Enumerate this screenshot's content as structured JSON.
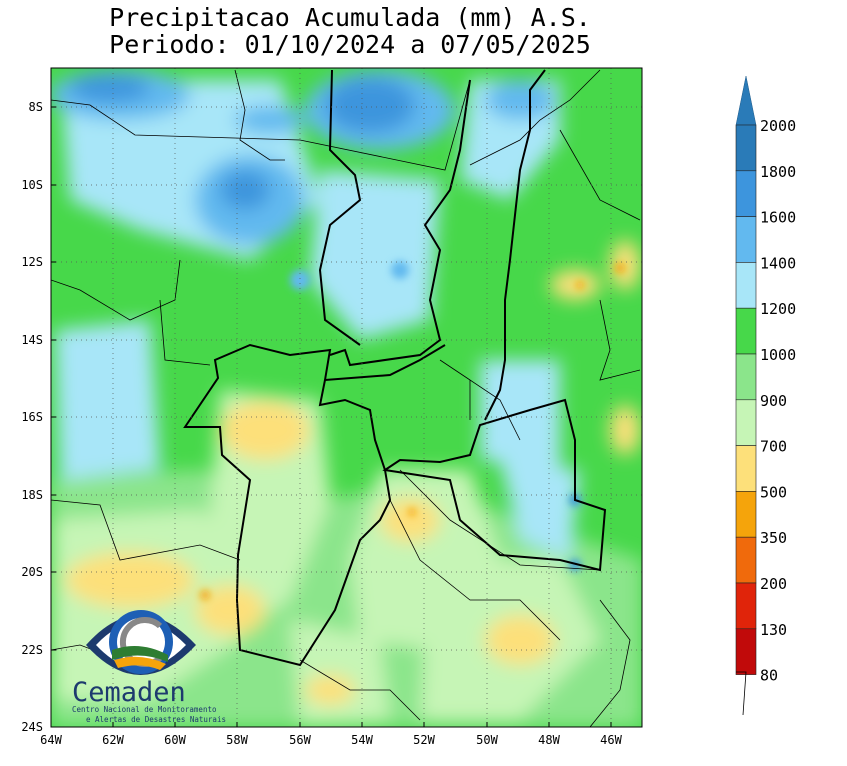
{
  "title": "Precipitacao Acumulada (mm) A.S.",
  "subtitle": "Periodo: 01/10/2024 a 07/05/2025",
  "map": {
    "lon_range": [
      -64,
      -45
    ],
    "lat_range": [
      -24,
      -7
    ],
    "lon_ticks": [
      "64W",
      "62W",
      "60W",
      "58W",
      "56W",
      "54W",
      "52W",
      "50W",
      "48W",
      "46W"
    ],
    "lat_ticks": [
      "8S",
      "10S",
      "12S",
      "14S",
      "16S",
      "18S",
      "20S",
      "22S",
      "24S"
    ],
    "dominant_class": "1000-1200 mm (green)",
    "grid": "dotted"
  },
  "legend": {
    "classes": [
      {
        "label": "2000",
        "color": "#2a7bb8"
      },
      {
        "label": "1800",
        "color": "#2a7bb8"
      },
      {
        "label": "1600",
        "color": "#3d95dd"
      },
      {
        "label": "1400",
        "color": "#62b9ef"
      },
      {
        "label": "1200",
        "color": "#a8e6f8"
      },
      {
        "label": "1000",
        "color": "#47d84a"
      },
      {
        "label": "900",
        "color": "#8be58b"
      },
      {
        "label": "700",
        "color": "#c6f5b6"
      },
      {
        "label": "500",
        "color": "#fde07a"
      },
      {
        "label": "350",
        "color": "#f5a40b"
      },
      {
        "label": "200",
        "color": "#f06a0c"
      },
      {
        "label": "130",
        "color": "#e0240a"
      },
      {
        "label": "80",
        "color": "#c10a0a"
      }
    ]
  },
  "logo": {
    "name": "Cemaden",
    "tagline_1": "Centro Nacional de Monitoramento",
    "tagline_2": "e Alertas de Desastres Naturais"
  }
}
